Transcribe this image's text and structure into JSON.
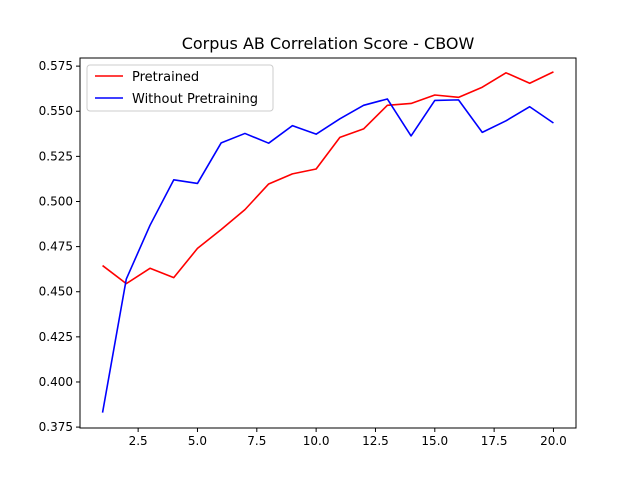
{
  "chart_data": {
    "type": "line",
    "title": "Corpus AB Correlation Score - CBOW",
    "xlabel": "",
    "ylabel": "",
    "xlim": [
      0.05,
      20.95
    ],
    "ylim": [
      0.3745,
      0.5795
    ],
    "xticks": [
      2.5,
      5.0,
      7.5,
      10.0,
      12.5,
      15.0,
      17.5,
      20.0
    ],
    "xtick_labels": [
      "2.5",
      "5.0",
      "7.5",
      "10.0",
      "12.5",
      "15.0",
      "17.5",
      "20.0"
    ],
    "yticks": [
      0.375,
      0.4,
      0.425,
      0.45,
      0.475,
      0.5,
      0.525,
      0.55,
      0.575
    ],
    "ytick_labels": [
      "0.375",
      "0.400",
      "0.425",
      "0.450",
      "0.475",
      "0.500",
      "0.525",
      "0.550",
      "0.575"
    ],
    "grid": false,
    "legend_position": "top-left",
    "x": [
      1,
      2,
      3,
      4,
      5,
      6,
      7,
      8,
      9,
      10,
      11,
      12,
      13,
      14,
      15,
      16,
      17,
      18,
      19,
      20
    ],
    "series": [
      {
        "name": "Pretrained",
        "color": "#ff0000",
        "values": [
          0.4645,
          0.4545,
          0.463,
          0.4578,
          0.474,
          0.4845,
          0.4955,
          0.5097,
          0.5153,
          0.518,
          0.5355,
          0.5402,
          0.5533,
          0.5543,
          0.559,
          0.5577,
          0.5633,
          0.5713,
          0.5655,
          0.5718
        ]
      },
      {
        "name": "Without Pretraining",
        "color": "#0000ff",
        "values": [
          0.383,
          0.457,
          0.4868,
          0.512,
          0.51,
          0.5325,
          0.5377,
          0.5323,
          0.542,
          0.5373,
          0.5458,
          0.5533,
          0.5568,
          0.5363,
          0.556,
          0.5563,
          0.5383,
          0.5447,
          0.5525,
          0.5435
        ]
      }
    ]
  }
}
